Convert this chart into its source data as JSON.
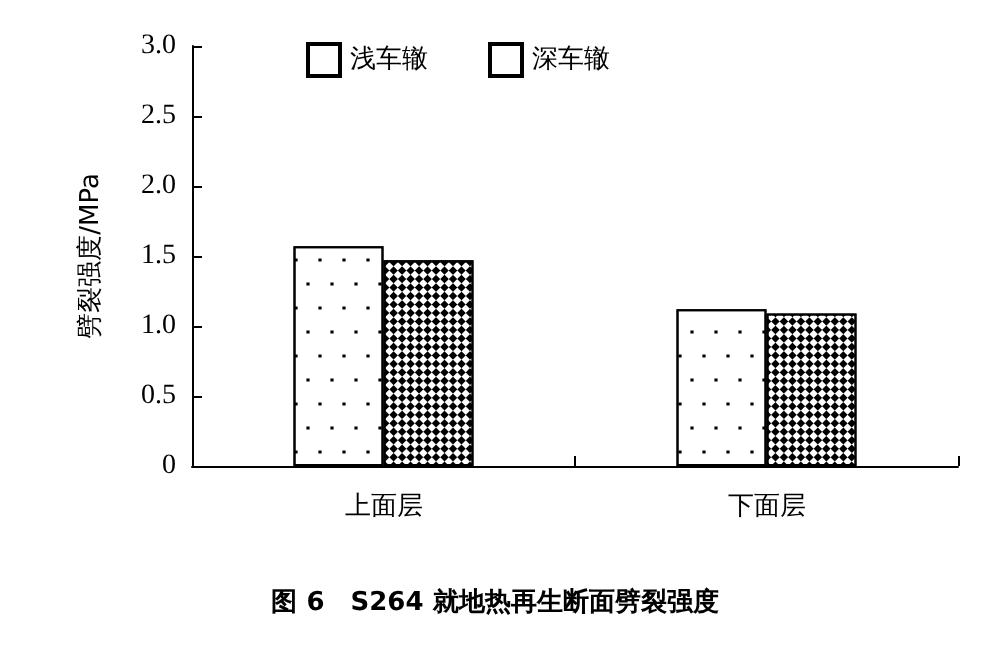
{
  "chart_data": {
    "type": "bar",
    "title": "图 6　S264 就地热再生断面劈裂强度",
    "ylabel": "劈裂强度/MPa",
    "categories": [
      "上面层",
      "下面层"
    ],
    "series": [
      {
        "name": "浅车辙",
        "color": "#ffffff",
        "values": [
          1.57,
          1.12
        ]
      },
      {
        "name": "深车辙",
        "color": "#ffffff",
        "values": [
          1.47,
          1.09
        ]
      }
    ],
    "ylim": [
      0,
      3.0
    ],
    "yticks": [
      0,
      {
        "value": 0.5,
        "label": "0.5"
      },
      {
        "value": 1,
        "label": "1.0"
      },
      {
        "value": 1.5,
        "label": "1.5"
      },
      {
        "value": 2,
        "label": "2.0"
      },
      {
        "value": 2.5,
        "label": "2.5"
      },
      {
        "value": 3,
        "label": "3.0"
      }
    ],
    "grid": false,
    "legend": "top"
  }
}
